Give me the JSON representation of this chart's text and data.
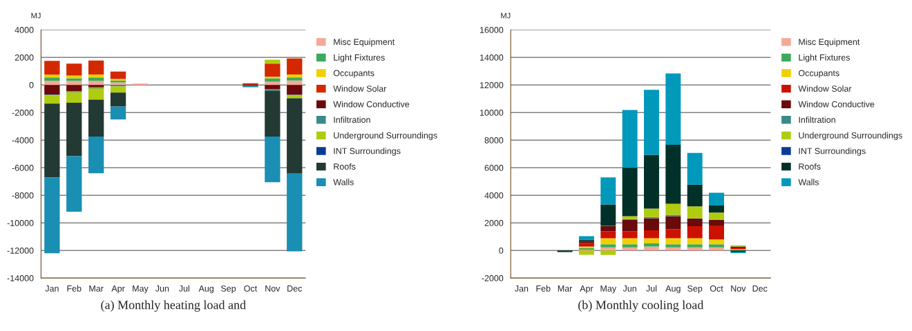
{
  "chart_data": [
    {
      "type": "bar",
      "stacked": true,
      "ylabel": "MJ",
      "annotations": [
        "(a) Monthly heating load and"
      ],
      "legend": "right",
      "grid": "y",
      "ylim": [
        -14000,
        4000
      ],
      "yticks": [
        -14000,
        -12000,
        -10000,
        -8000,
        -6000,
        -4000,
        -2000,
        0,
        2000,
        4000
      ],
      "categories": [
        "Jan",
        "Feb",
        "Mar",
        "Apr",
        "May",
        "Jun",
        "Jul",
        "Aug",
        "Sep",
        "Oct",
        "Nov",
        "Dec"
      ],
      "series": [
        {
          "name": "Misc Equipment",
          "color": "#f4a898",
          "values": [
            300,
            300,
            300,
            190,
            100,
            null,
            null,
            null,
            null,
            null,
            240,
            320
          ]
        },
        {
          "name": "Light Fixtures",
          "color": "#3caa5c",
          "values": [
            250,
            180,
            250,
            130,
            null,
            null,
            null,
            null,
            null,
            null,
            240,
            230
          ]
        },
        {
          "name": "Occupants",
          "color": "#f2d000",
          "values": [
            200,
            200,
            210,
            120,
            null,
            null,
            null,
            null,
            null,
            null,
            120,
            210
          ]
        },
        {
          "name": "Window Solar",
          "color": "#d42800",
          "values": [
            1000,
            870,
            1010,
            530,
            null,
            null,
            null,
            null,
            null,
            120,
            950,
            1160
          ]
        },
        {
          "name": "Window Conductive",
          "color": "#6b0a0a",
          "values": [
            -700,
            -450,
            -160,
            null,
            null,
            null,
            null,
            null,
            null,
            null,
            -320,
            -710
          ]
        },
        {
          "name": "Infiltration",
          "color": "#3a8a8a",
          "values": [
            -50,
            -80,
            -80,
            -100,
            null,
            null,
            null,
            null,
            null,
            null,
            -100,
            -60
          ]
        },
        {
          "name": "Underground Surroundings",
          "color": "#b0cc10",
          "values": [
            -600,
            -760,
            -820,
            -450,
            null,
            null,
            null,
            null,
            null,
            null,
            290,
            -200
          ]
        },
        {
          "name": "INT Surroundings",
          "color": "#0a3c96",
          "values": [
            null,
            null,
            null,
            null,
            null,
            null,
            null,
            null,
            null,
            null,
            null,
            null
          ]
        },
        {
          "name": "Roofs",
          "color": "#223a33",
          "values": [
            -5350,
            -3880,
            -2680,
            -1010,
            null,
            null,
            null,
            null,
            null,
            -80,
            -3320,
            -5460
          ]
        },
        {
          "name": "Walls",
          "color": "#1a8fb3",
          "values": [
            -5500,
            -4020,
            -2660,
            -940,
            null,
            null,
            null,
            null,
            null,
            -80,
            -3310,
            -5630
          ]
        }
      ]
    },
    {
      "type": "bar",
      "stacked": true,
      "ylabel": "MJ",
      "annotations": [
        "(b) Monthly cooling load"
      ],
      "legend": "right",
      "grid": "y",
      "ylim": [
        -2000,
        16000
      ],
      "yticks": [
        -2000,
        0,
        2000,
        4000,
        6000,
        8000,
        10000,
        12000,
        14000,
        16000
      ],
      "categories": [
        "Jan",
        "Feb",
        "Mar",
        "Apr",
        "May",
        "Jun",
        "Jul",
        "Aug",
        "Sep",
        "Oct",
        "Nov",
        "Dec"
      ],
      "series": [
        {
          "name": "Misc Equipment",
          "color": "#f4a898",
          "values": [
            null,
            null,
            null,
            60,
            220,
            220,
            290,
            220,
            220,
            220,
            null,
            null
          ]
        },
        {
          "name": "Light Fixtures",
          "color": "#3caa5c",
          "values": [
            null,
            null,
            null,
            100,
            230,
            230,
            240,
            230,
            230,
            230,
            40,
            null
          ]
        },
        {
          "name": "Occupants",
          "color": "#f2d000",
          "values": [
            null,
            null,
            null,
            130,
            430,
            430,
            350,
            430,
            430,
            350,
            40,
            null
          ]
        },
        {
          "name": "Window Solar",
          "color": "#cc1100",
          "values": [
            null,
            null,
            null,
            250,
            500,
            500,
            580,
            660,
            880,
            1010,
            130,
            null
          ]
        },
        {
          "name": "Window Conductive",
          "color": "#6b0a0a",
          "values": [
            null,
            null,
            null,
            150,
            380,
            830,
            880,
            940,
            560,
            400,
            70,
            null
          ]
        },
        {
          "name": "Infiltration",
          "color": "#3a8a8a",
          "values": [
            null,
            null,
            null,
            null,
            50,
            60,
            80,
            110,
            null,
            null,
            null,
            null
          ]
        },
        {
          "name": "Underground Surroundings",
          "color": "#b0cc10",
          "values": [
            null,
            null,
            null,
            -320,
            -330,
            210,
            620,
            800,
            880,
            540,
            90,
            null
          ]
        },
        {
          "name": "INT Surroundings",
          "color": "#0a3c96",
          "values": [
            null,
            null,
            null,
            null,
            null,
            null,
            null,
            null,
            null,
            null,
            null,
            null
          ]
        },
        {
          "name": "Roofs",
          "color": "#003028",
          "values": [
            null,
            null,
            -110,
            80,
            1520,
            3520,
            3900,
            4270,
            1570,
            510,
            -90,
            null
          ]
        },
        {
          "name": "Walls",
          "color": "#0099bb",
          "values": [
            null,
            null,
            null,
            260,
            1970,
            4180,
            4710,
            5170,
            2300,
            930,
            -100,
            null
          ]
        }
      ]
    }
  ]
}
